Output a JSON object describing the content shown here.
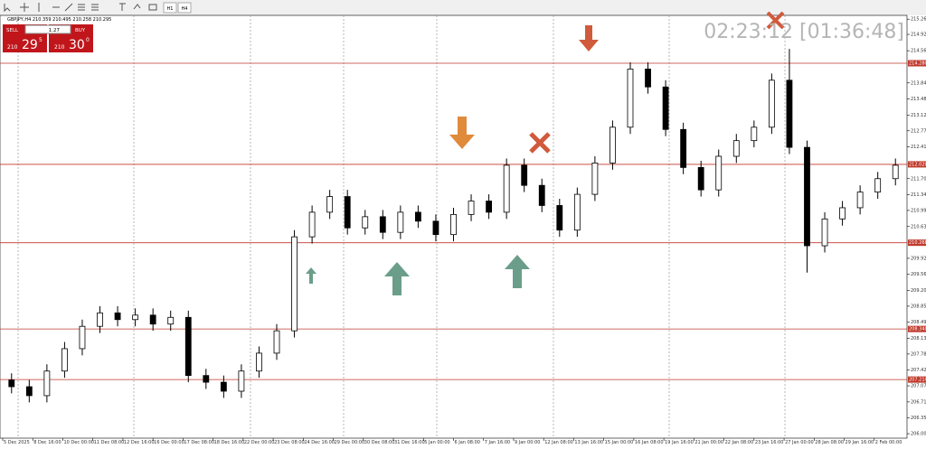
{
  "ui": {
    "symbol_info": "GBPJPY,H4  210.359 210.495 210.258 210.295",
    "sell": "SELL",
    "buy": "BUY",
    "lot": "1.27",
    "bid_big": "210",
    "bid_main": "29",
    "bid_small": "5",
    "ask_big": "210",
    "ask_main": "30",
    "ask_small": "0",
    "timeframes": [
      "H1",
      "H4"
    ],
    "clock": "02:23:12 [01:36:48]"
  },
  "chart_data": {
    "type": "candlestick",
    "ylim": [
      205.9,
      215.35
    ],
    "up_color": "#ffffff",
    "down_color": "#000000",
    "level_color": "#c0392b",
    "x_labels": [
      "5 Dec 2025",
      "8 Dec 16:00",
      "10 Dec 00:00",
      "11 Dec 08:00",
      "12 Dec 16:00",
      "16 Dec 00:00",
      "17 Dec 08:00",
      "18 Dec 16:00",
      "22 Dec 00:00",
      "23 Dec 08:00",
      "24 Dec 16:00",
      "29 Dec 00:00",
      "30 Dec 08:00",
      "31 Dec 16:00",
      "5 Jan 00:00",
      "6 Jan 08:00",
      "7 Jan 16:00",
      "9 Jan 00:00",
      "12 Jan 08:00",
      "13 Jan 16:00",
      "15 Jan 00:00",
      "16 Jan 08:00",
      "19 Jan 16:00",
      "21 Jan 00:00",
      "22 Jan 08:00",
      "23 Jan 16:00",
      "27 Jan 00:00",
      "28 Jan 08:00",
      "29 Jan 16:00",
      "2 Feb 00:00"
    ],
    "yticks": [
      {
        "value": 215.265,
        "label": "215.265"
      },
      {
        "value": 214.925,
        "label": "214.925"
      },
      {
        "value": 214.56,
        "label": "214.560"
      },
      {
        "value": 213.84,
        "label": "213.840"
      },
      {
        "value": 213.48,
        "label": "213.480"
      },
      {
        "value": 213.12,
        "label": "213.120"
      },
      {
        "value": 212.77,
        "label": "212.770"
      },
      {
        "value": 212.41,
        "label": "212.410"
      },
      {
        "value": 211.7,
        "label": "211.700"
      },
      {
        "value": 211.34,
        "label": "211.340"
      },
      {
        "value": 210.99,
        "label": "210.990"
      },
      {
        "value": 210.63,
        "label": "210.630"
      },
      {
        "value": 209.92,
        "label": "209.920"
      },
      {
        "value": 209.56,
        "label": "209.560"
      },
      {
        "value": 209.2,
        "label": "209.200"
      },
      {
        "value": 208.85,
        "label": "208.850"
      },
      {
        "value": 208.49,
        "label": "208.490"
      },
      {
        "value": 208.13,
        "label": "208.130"
      },
      {
        "value": 207.78,
        "label": "207.780"
      },
      {
        "value": 207.42,
        "label": "207.420"
      },
      {
        "value": 207.07,
        "label": "207.070"
      },
      {
        "value": 206.71,
        "label": "206.710"
      },
      {
        "value": 206.35,
        "label": "206.350"
      },
      {
        "value": 206,
        "label": "206.000"
      }
    ],
    "levels": [
      {
        "value": 214.28,
        "label": "214.280"
      },
      {
        "value": 212.02,
        "label": "212.020"
      },
      {
        "value": 210.268,
        "label": "210.268"
      },
      {
        "value": 208.34,
        "label": "208.340"
      },
      {
        "value": 207.21,
        "label": "207.210"
      }
    ],
    "open": [
      207.2,
      207.05,
      206.85,
      207.4,
      207.9,
      208.4,
      208.7,
      208.55,
      208.65,
      208.45,
      208.6,
      207.3,
      207.15,
      206.95,
      207.4,
      207.8,
      208.3,
      210.4,
      210.95,
      211.3,
      210.6,
      210.85,
      210.5,
      210.95,
      210.75,
      210.45,
      210.9,
      211.2,
      210.95,
      212,
      211.55,
      211.1,
      210.55,
      211.35,
      212.05,
      212.85,
      214.15,
      213.75,
      212.8,
      211.95,
      211.45,
      212.2,
      212.55,
      212.85,
      213.9,
      212.4,
      210.2,
      210.8,
      211.05,
      211.4,
      211.7
    ],
    "high": [
      207.35,
      207.2,
      207.55,
      208.05,
      208.55,
      208.85,
      208.85,
      208.8,
      208.8,
      208.75,
      208.75,
      207.45,
      207.3,
      207.55,
      207.95,
      208.45,
      210.55,
      211.1,
      211.45,
      211.45,
      211,
      211,
      211.1,
      211.1,
      210.9,
      211.05,
      211.35,
      211.35,
      212.15,
      212.15,
      211.7,
      211.25,
      211.5,
      212.2,
      213,
      214.3,
      214.3,
      213.9,
      212.95,
      212.1,
      212.35,
      212.7,
      213,
      214.05,
      214.6,
      212.55,
      210.95,
      211.2,
      211.55,
      211.85,
      212.15
    ],
    "low": [
      206.9,
      206.7,
      206.7,
      207.25,
      207.75,
      208.25,
      208.4,
      208.4,
      208.3,
      208.3,
      207.15,
      207,
      206.8,
      206.8,
      207.25,
      207.65,
      208.15,
      210.25,
      210.8,
      210.45,
      210.45,
      210.35,
      210.35,
      210.6,
      210.3,
      210.3,
      210.75,
      210.8,
      210.8,
      211.4,
      210.95,
      210.4,
      210.4,
      211.2,
      211.9,
      212.7,
      213.6,
      212.65,
      211.8,
      211.3,
      211.3,
      212.05,
      212.4,
      212.7,
      212.25,
      209.6,
      210.05,
      210.65,
      210.9,
      211.25,
      211.55
    ],
    "close": [
      207.05,
      206.85,
      207.4,
      207.9,
      208.4,
      208.7,
      208.55,
      208.65,
      208.45,
      208.6,
      207.3,
      207.15,
      206.95,
      207.4,
      207.8,
      208.3,
      210.4,
      210.95,
      211.3,
      210.6,
      210.85,
      210.5,
      210.95,
      210.75,
      210.45,
      210.9,
      211.2,
      210.95,
      212,
      211.55,
      211.1,
      210.55,
      211.35,
      212.05,
      212.85,
      214.15,
      213.75,
      212.8,
      211.95,
      211.45,
      212.2,
      212.55,
      212.85,
      213.9,
      212.4,
      210.2,
      210.8,
      211.05,
      211.4,
      211.7,
      212
    ]
  }
}
